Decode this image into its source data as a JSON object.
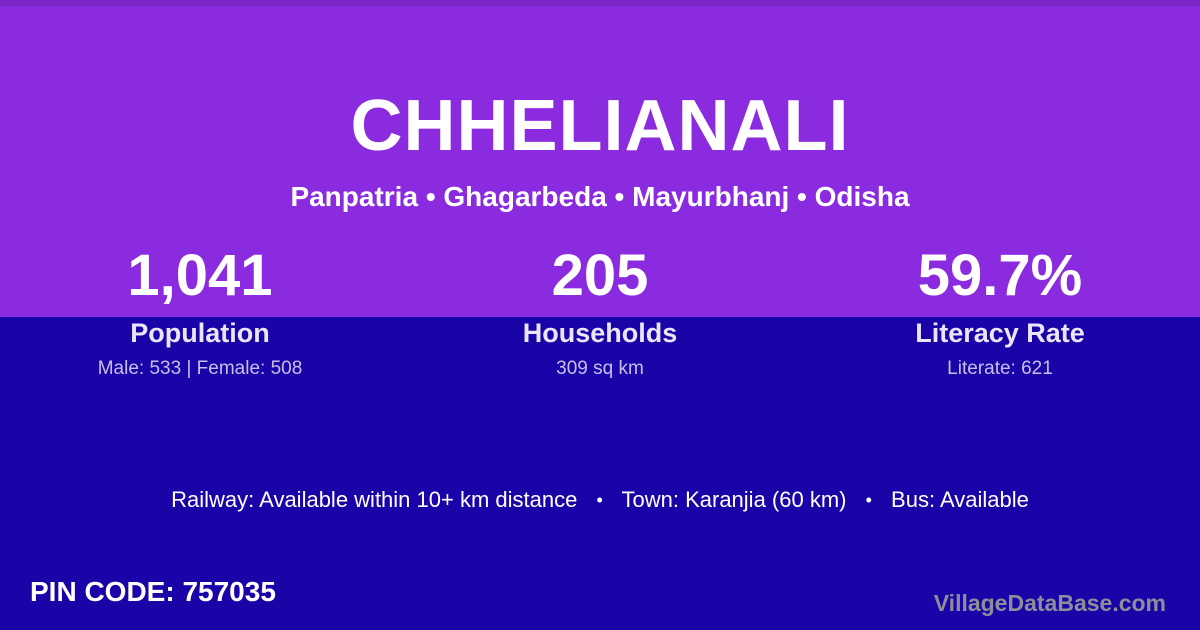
{
  "card": {
    "title": "CHHELIANALI",
    "subtitle": "Panpatria • Ghagarbeda • Mayurbhanj • Odisha"
  },
  "stats": {
    "population": {
      "value": "1,041",
      "label": "Population",
      "detail": "Male: 533 | Female: 508"
    },
    "households": {
      "value": "205",
      "label": "Households",
      "detail": "309 sq km"
    },
    "literacy": {
      "value": "59.7%",
      "label": "Literacy Rate",
      "detail": "Literate: 621"
    }
  },
  "info": {
    "railway": "Railway: Available within 10+ km distance",
    "town": "Town: Karanjia (60 km)",
    "bus": "Bus: Available",
    "separator": "•"
  },
  "footer": {
    "pin_code": "PIN CODE: 757035",
    "watermark": "VillageDataBase.com"
  },
  "colors": {
    "header_purple": "#8b2bdf",
    "body_indigo": "#1a04a8",
    "primary_text": "#ffffff",
    "label_text": "#eae5f8",
    "detail_text": "#c7bfe8",
    "watermark_text": "#8e8e99"
  }
}
